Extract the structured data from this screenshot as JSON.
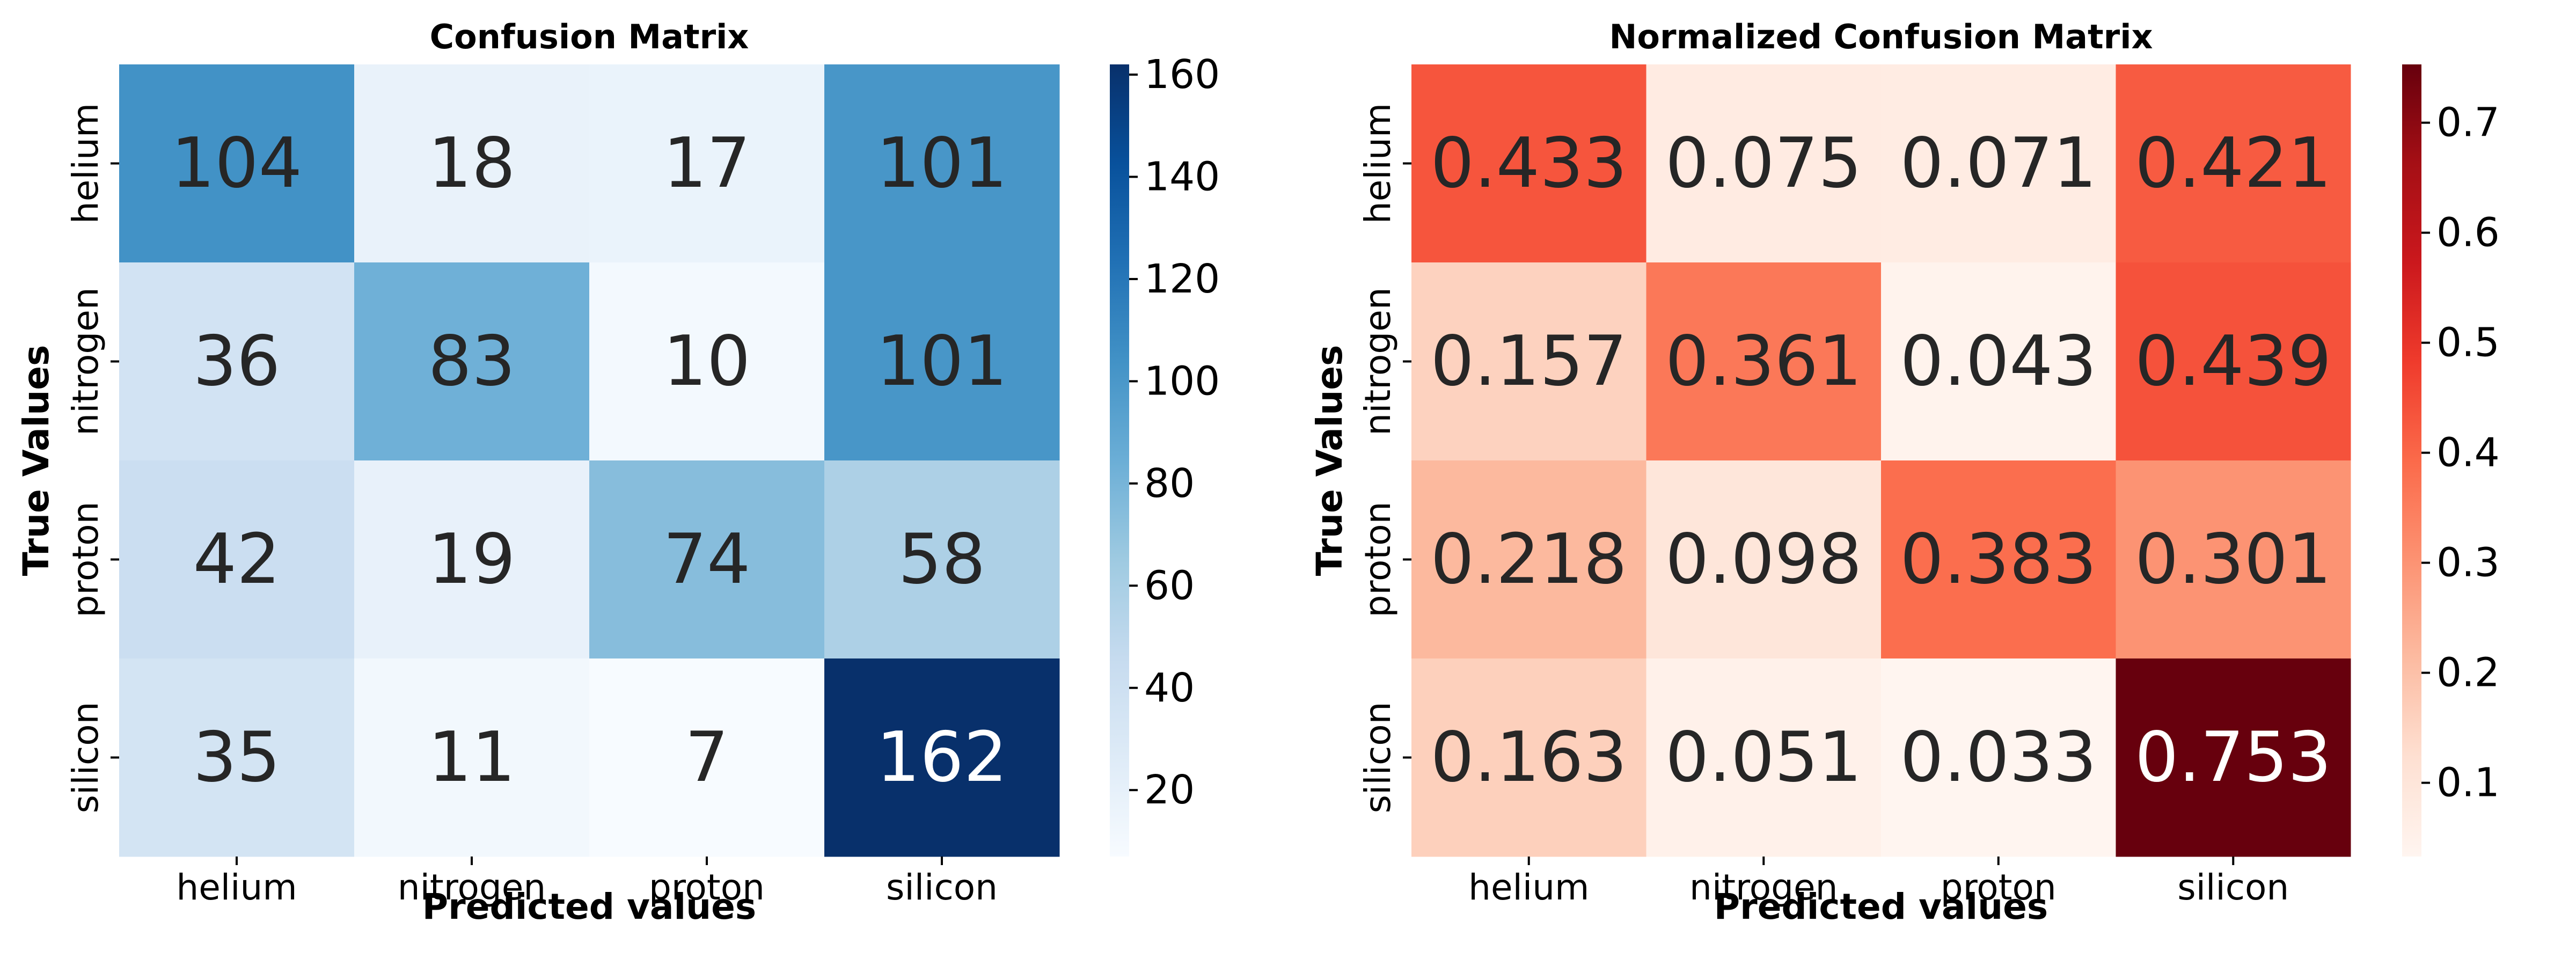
{
  "chart_data": [
    {
      "type": "heatmap",
      "title": "Confusion Matrix",
      "xlabel": "Predicted values",
      "ylabel": "True Values",
      "x_categories": [
        "helium",
        "nitrogen",
        "proton",
        "silicon"
      ],
      "y_categories": [
        "helium",
        "nitrogen",
        "proton",
        "silicon"
      ],
      "values": [
        [
          104,
          18,
          17,
          101
        ],
        [
          36,
          83,
          10,
          101
        ],
        [
          42,
          19,
          74,
          58
        ],
        [
          35,
          11,
          7,
          162
        ]
      ],
      "value_labels": [
        [
          "104",
          "18",
          "17",
          "101"
        ],
        [
          "36",
          "83",
          "10",
          "101"
        ],
        [
          "42",
          "19",
          "74",
          "58"
        ],
        [
          "35",
          "11",
          "7",
          "162"
        ]
      ],
      "colormap": "Blues",
      "color_range": [
        7,
        162
      ],
      "colorbar_ticks": [
        20,
        40,
        60,
        80,
        100,
        120,
        140,
        160
      ],
      "colorbar_tick_labels": [
        "20",
        "40",
        "60",
        "80",
        "100",
        "120",
        "140",
        "160"
      ]
    },
    {
      "type": "heatmap",
      "title": "Normalized Confusion Matrix",
      "xlabel": "Predicted values",
      "ylabel": "True Values",
      "x_categories": [
        "helium",
        "nitrogen",
        "proton",
        "silicon"
      ],
      "y_categories": [
        "helium",
        "nitrogen",
        "proton",
        "silicon"
      ],
      "values": [
        [
          0.433,
          0.075,
          0.071,
          0.421
        ],
        [
          0.157,
          0.361,
          0.043,
          0.439
        ],
        [
          0.218,
          0.098,
          0.383,
          0.301
        ],
        [
          0.163,
          0.051,
          0.033,
          0.753
        ]
      ],
      "value_labels": [
        [
          "0.433",
          "0.075",
          "0.071",
          "0.421"
        ],
        [
          "0.157",
          "0.361",
          "0.043",
          "0.439"
        ],
        [
          "0.218",
          "0.098",
          "0.383",
          "0.301"
        ],
        [
          "0.163",
          "0.051",
          "0.033",
          "0.753"
        ]
      ],
      "colormap": "Reds",
      "color_range": [
        0.033,
        0.753
      ],
      "colorbar_ticks": [
        0.1,
        0.2,
        0.3,
        0.4,
        0.5,
        0.6,
        0.7
      ],
      "colorbar_tick_labels": [
        "0.1",
        "0.2",
        "0.3",
        "0.4",
        "0.5",
        "0.6",
        "0.7"
      ]
    }
  ]
}
